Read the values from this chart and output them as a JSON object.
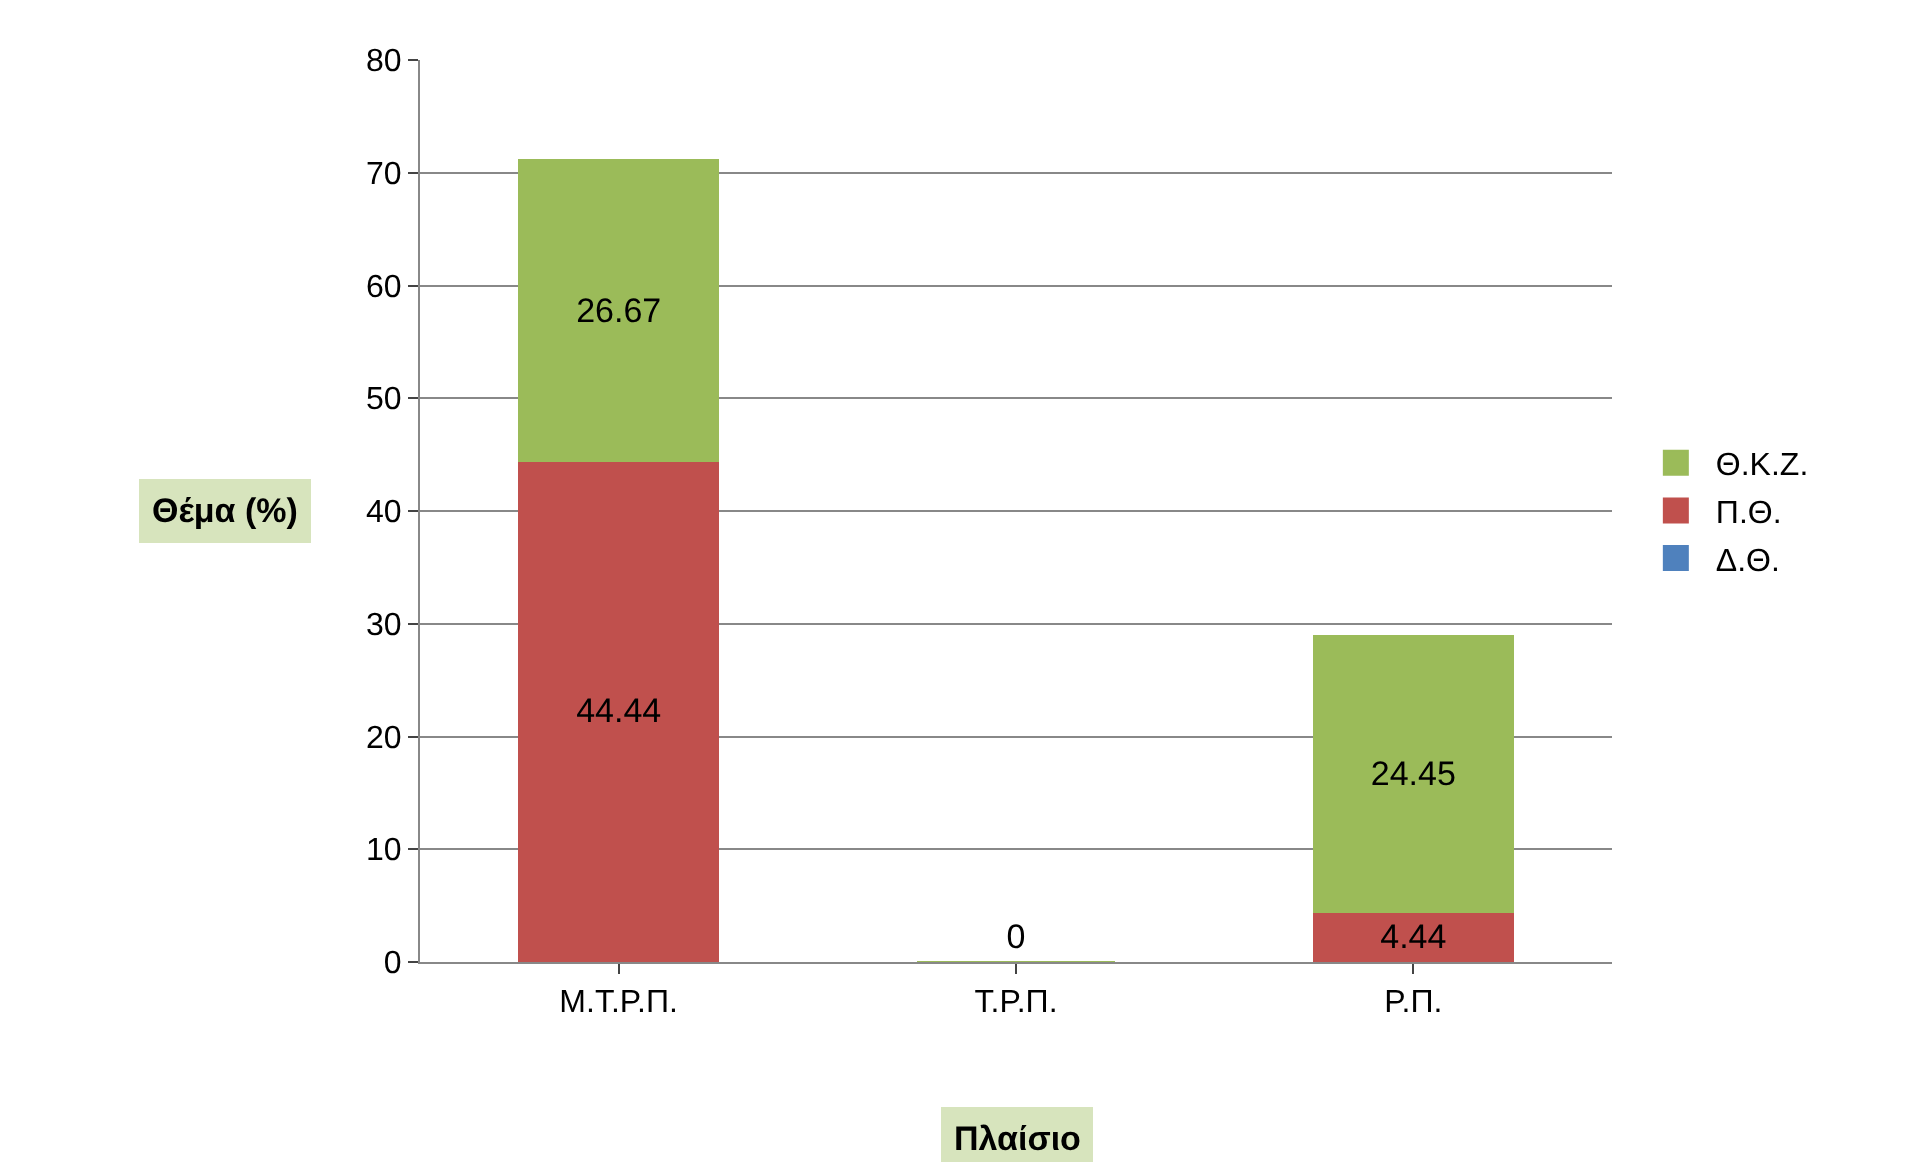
{
  "chart_data": {
    "type": "bar",
    "stacked": true,
    "xlabel": "Πλαίσιο",
    "ylabel": "Θέμα (%)",
    "categories": [
      "Μ.Τ.Ρ.Π.",
      "Τ.Ρ.Π.",
      "Ρ.Π."
    ],
    "series": [
      {
        "name": "Δ.Θ.",
        "color": "#4f81bd",
        "values": [
          0,
          0,
          0
        ],
        "value_labels": [
          null,
          "0",
          null
        ]
      },
      {
        "name": "Π.Θ.",
        "color": "#c0504d",
        "values": [
          44.44,
          0,
          4.44
        ],
        "value_labels": [
          "44.44",
          null,
          "4.44"
        ]
      },
      {
        "name": "Θ.Κ.Ζ.",
        "color": "#9bbb59",
        "values": [
          26.67,
          0,
          24.45
        ],
        "value_labels": [
          "26.67",
          null,
          "24.45"
        ]
      }
    ],
    "ylim": [
      0,
      80
    ],
    "yticks": [
      0,
      10,
      20,
      30,
      40,
      50,
      60,
      70,
      80
    ],
    "grid": "y",
    "legend": "right"
  }
}
